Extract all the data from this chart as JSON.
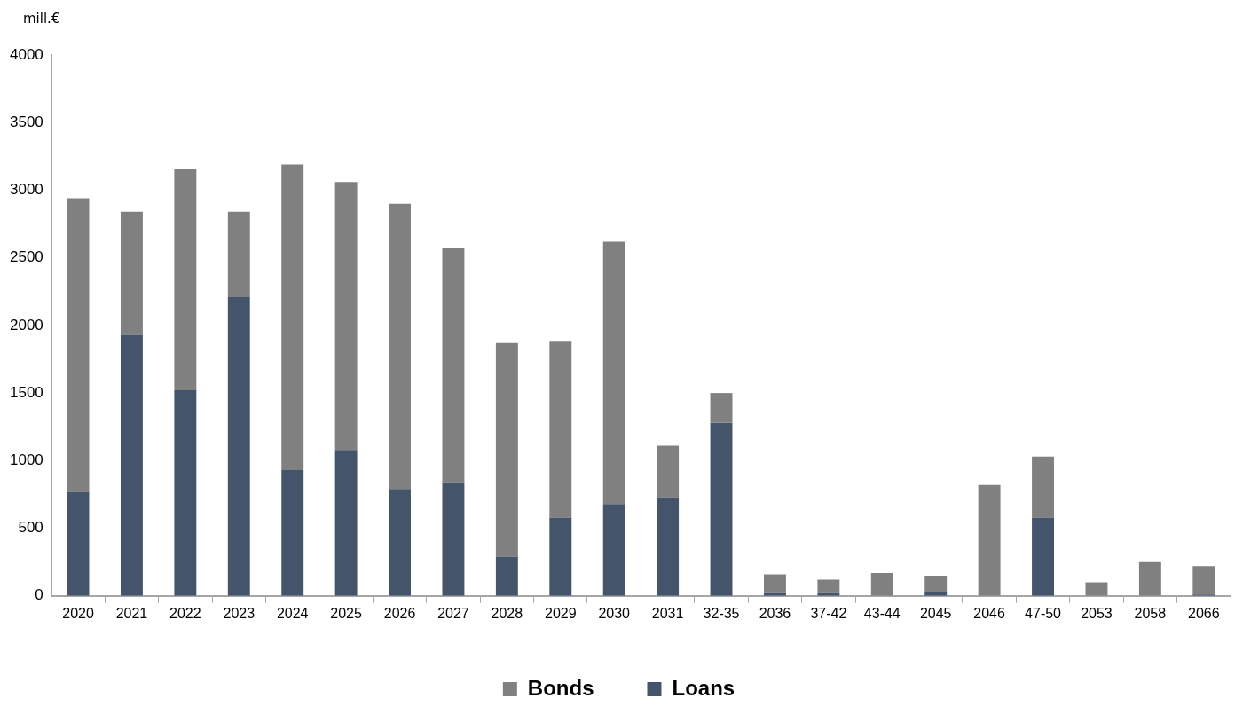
{
  "chart_data": {
    "type": "bar",
    "ylabel": "mill.€",
    "stacked": true,
    "grid": false,
    "legend": "bottom",
    "categories": [
      "2020",
      "2021",
      "2022",
      "2023",
      "2024",
      "2025",
      "2026",
      "2027",
      "2028",
      "2029",
      "2030",
      "2031",
      "32-35",
      "2036",
      "37-42",
      "43-44",
      "2045",
      "2046",
      "47-50",
      "2053",
      "2058",
      "2066"
    ],
    "series": [
      {
        "name": "Loans",
        "color": "#44546a",
        "values": [
          770,
          1930,
          1520,
          2210,
          930,
          1080,
          790,
          840,
          290,
          580,
          680,
          730,
          1280,
          20,
          20,
          0,
          30,
          0,
          580,
          0,
          0,
          10
        ]
      },
      {
        "name": "Bonds",
        "color": "#808080",
        "values": [
          2170,
          910,
          1640,
          630,
          2260,
          1980,
          2110,
          1730,
          1580,
          1300,
          1940,
          380,
          220,
          140,
          100,
          170,
          120,
          820,
          450,
          100,
          250,
          210
        ]
      }
    ],
    "ylim": [
      0,
      4000
    ],
    "yticks": [
      0,
      500,
      1000,
      1500,
      2000,
      2500,
      3000,
      3500,
      4000
    ]
  }
}
